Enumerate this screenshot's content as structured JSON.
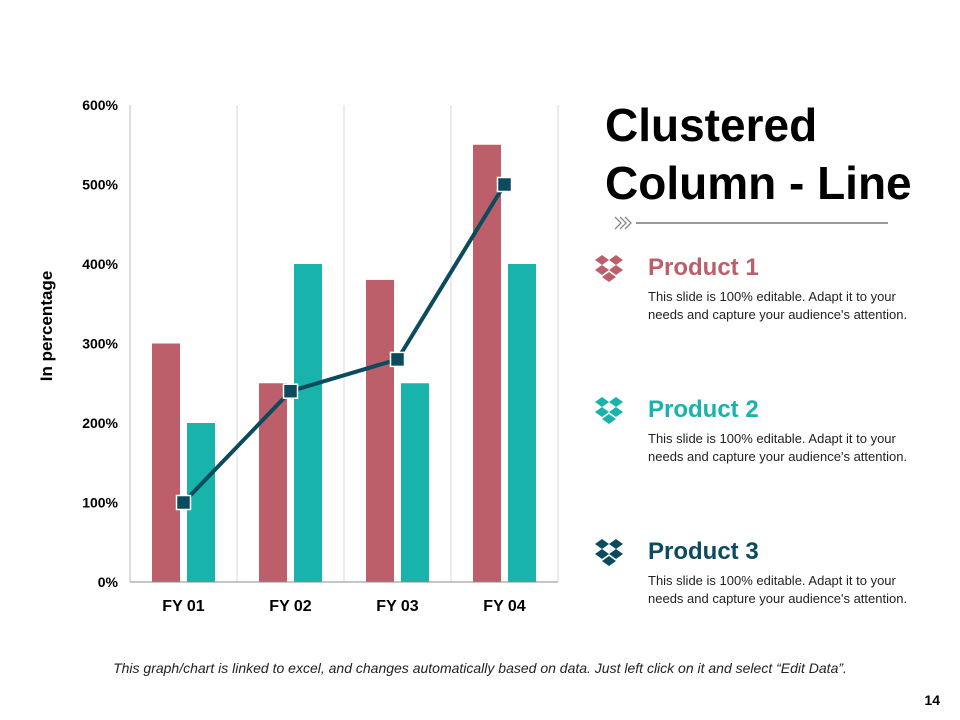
{
  "slide": {
    "title": "Clustered Column - Line",
    "footnote": "This graph/chart is linked to excel, and changes automatically based on data. Just left click on it and select “Edit Data”.",
    "page_number": "14"
  },
  "legend": [
    {
      "name": "Product 1",
      "description": "This slide is 100% editable. Adapt it to your needs and capture your audience's attention.",
      "color": "#bc5f6a",
      "icon": "dropbox-icon"
    },
    {
      "name": "Product 2",
      "description": "This slide is 100% editable. Adapt it to your needs and capture your audience's attention.",
      "color": "#18b3ab",
      "icon": "dropbox-icon"
    },
    {
      "name": "Product 3",
      "description": "This slide is 100% editable. Adapt it to your needs and capture your audience's attention.",
      "color": "#0c4b5e",
      "icon": "dropbox-icon"
    }
  ],
  "chart_data": {
    "type": "bar",
    "categories": [
      "FY 01",
      "FY 02",
      "FY 03",
      "FY 04"
    ],
    "series": [
      {
        "name": "Product 1",
        "type": "bar",
        "values": [
          300,
          250,
          380,
          550
        ],
        "color": "#bc5f6a"
      },
      {
        "name": "Product 2",
        "type": "bar",
        "values": [
          200,
          400,
          250,
          400
        ],
        "color": "#18b3ab"
      },
      {
        "name": "Product 3",
        "type": "line",
        "values": [
          100,
          240,
          280,
          500
        ],
        "color": "#0c4b5e"
      }
    ],
    "ylabel": "In percentage",
    "ylim": [
      0,
      600
    ],
    "yticks": [
      "0%",
      "100%",
      "200%",
      "300%",
      "400%",
      "500%",
      "600%"
    ],
    "grid": "vertical"
  }
}
